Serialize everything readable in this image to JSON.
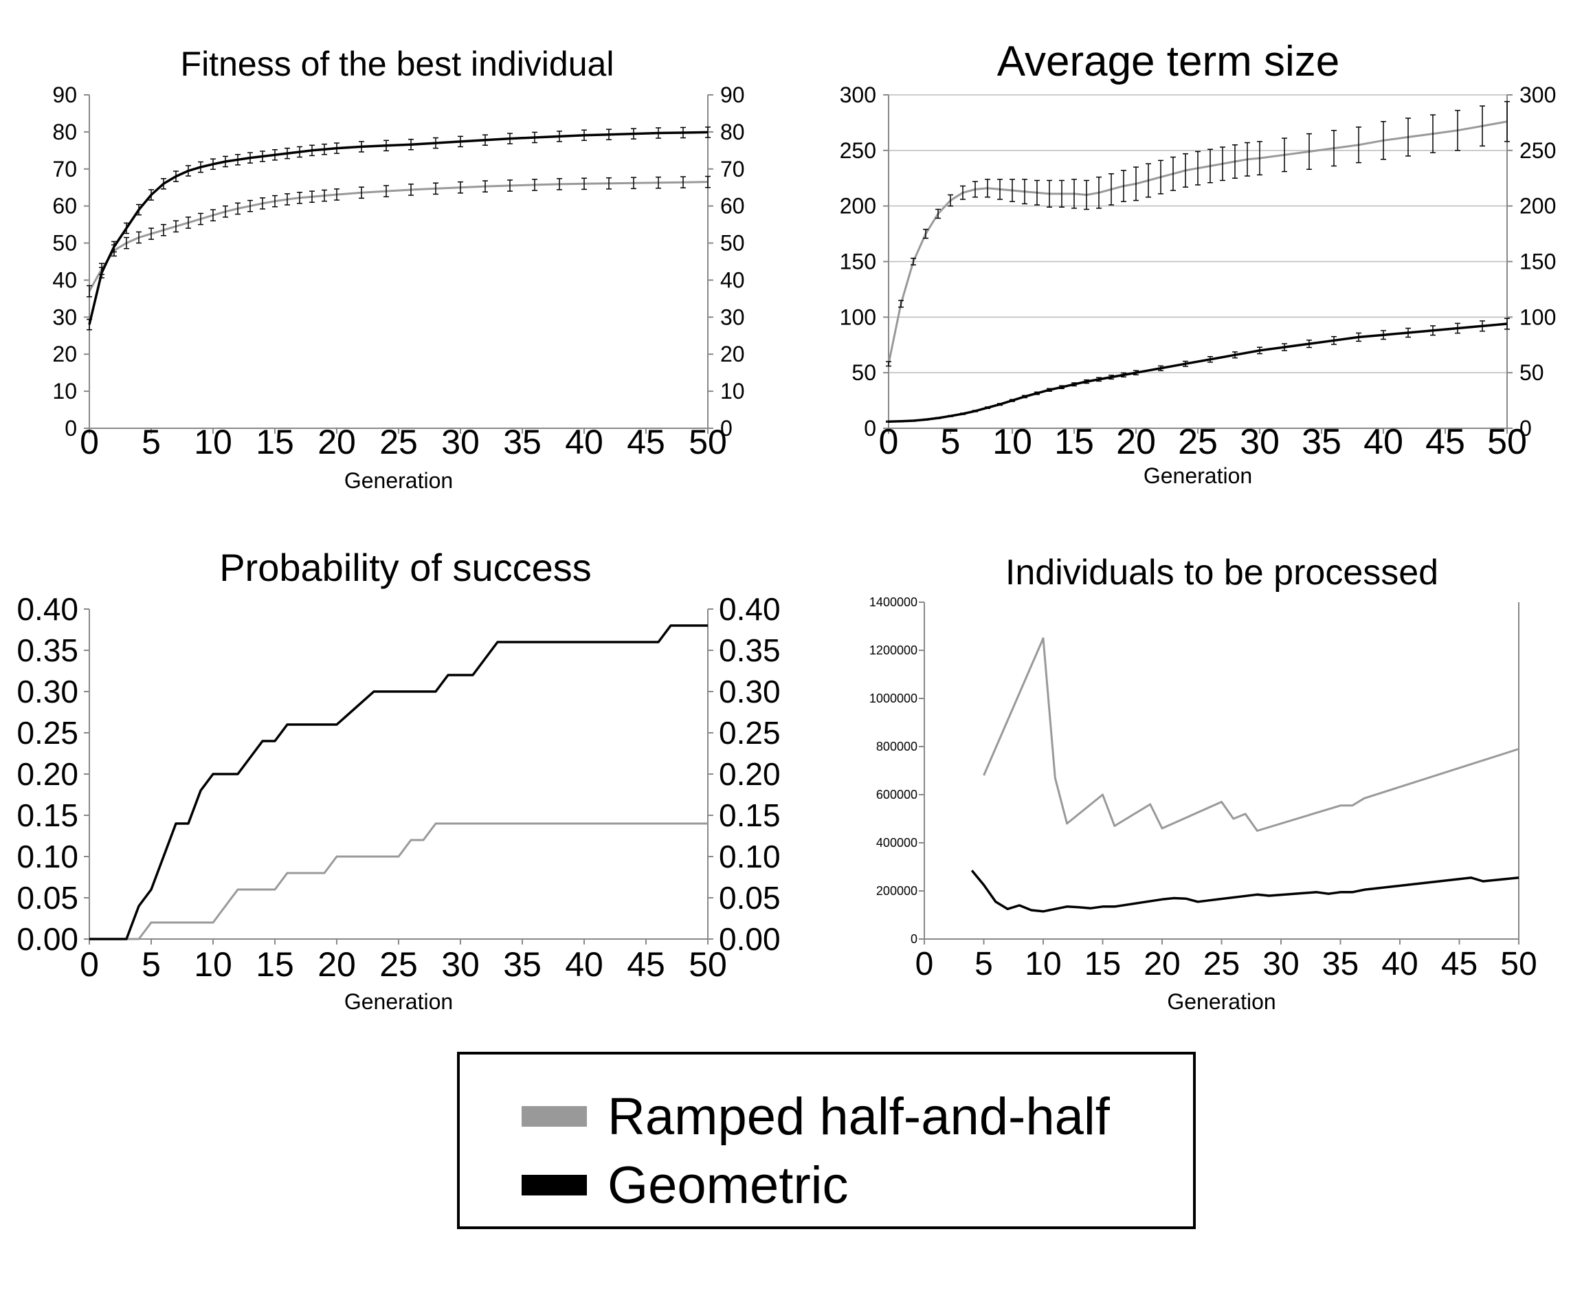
{
  "colors": {
    "ramped": "#999999",
    "geometric": "#000000",
    "grid": "#bbbbbb",
    "axis": "#888888",
    "text": "#000000"
  },
  "legend": {
    "items": [
      {
        "label": "Ramped half-and-half",
        "color": "#999999"
      },
      {
        "label": "Geometric",
        "color": "#000000"
      }
    ]
  },
  "chart_data": [
    {
      "id": "fitness",
      "type": "line",
      "title": "Fitness of the best individual",
      "xlabel": "Generation",
      "ylabel": "",
      "xlim": [
        0,
        50
      ],
      "ylim": [
        0,
        90
      ],
      "xticks": [
        0,
        5,
        10,
        15,
        20,
        25,
        30,
        35,
        40,
        45,
        50
      ],
      "yticks": [
        0,
        10,
        20,
        30,
        40,
        50,
        60,
        70,
        80,
        90
      ],
      "ytick_labels": [
        "0",
        "10",
        "20",
        "30",
        "40",
        "50",
        "60",
        "70",
        "80",
        "90"
      ],
      "right_axis": true,
      "grid": false,
      "error_bars": true,
      "series": [
        {
          "key": "ramped",
          "color": "#999999",
          "x": [
            0,
            1,
            2,
            3,
            4,
            5,
            6,
            7,
            8,
            9,
            10,
            11,
            12,
            13,
            14,
            15,
            16,
            17,
            18,
            19,
            20,
            22,
            24,
            26,
            28,
            30,
            32,
            34,
            36,
            38,
            40,
            42,
            44,
            46,
            48,
            50
          ],
          "y": [
            37,
            43,
            48,
            50,
            51.5,
            52.5,
            53.5,
            54.5,
            55.5,
            56.5,
            57.5,
            58.5,
            59.3,
            60,
            60.7,
            61.3,
            61.8,
            62.2,
            62.5,
            62.8,
            63.1,
            63.6,
            64,
            64.4,
            64.7,
            65,
            65.3,
            65.5,
            65.7,
            65.9,
            66,
            66.1,
            66.2,
            66.3,
            66.4,
            66.5
          ],
          "err": 1.5
        },
        {
          "key": "geometric",
          "color": "#000000",
          "x": [
            0,
            1,
            2,
            3,
            4,
            5,
            6,
            7,
            8,
            9,
            10,
            11,
            12,
            13,
            14,
            15,
            16,
            17,
            18,
            19,
            20,
            22,
            24,
            26,
            28,
            30,
            32,
            34,
            36,
            38,
            40,
            42,
            44,
            46,
            48,
            50
          ],
          "y": [
            28,
            42,
            49,
            54,
            59,
            63,
            66,
            68,
            69.5,
            70.5,
            71.3,
            72,
            72.5,
            73,
            73.4,
            73.8,
            74.2,
            74.6,
            75,
            75.3,
            75.6,
            76,
            76.3,
            76.6,
            77,
            77.4,
            77.8,
            78.2,
            78.5,
            78.8,
            79.1,
            79.3,
            79.5,
            79.7,
            79.8,
            79.9
          ],
          "err": 1.4
        }
      ]
    },
    {
      "id": "termsize",
      "type": "line",
      "title": "Average term size",
      "xlabel": "Generation",
      "ylabel": "",
      "xlim": [
        0,
        50
      ],
      "ylim": [
        0,
        300
      ],
      "xticks": [
        0,
        5,
        10,
        15,
        20,
        25,
        30,
        35,
        40,
        45,
        50
      ],
      "yticks": [
        0,
        50,
        100,
        150,
        200,
        250,
        300
      ],
      "ytick_labels": [
        "0",
        "50",
        "100",
        "150",
        "200",
        "250",
        "300"
      ],
      "right_axis": true,
      "grid": true,
      "error_bars": true,
      "series": [
        {
          "key": "ramped",
          "color": "#999999",
          "x": [
            0,
            1,
            2,
            3,
            4,
            5,
            6,
            7,
            8,
            9,
            10,
            11,
            12,
            13,
            14,
            15,
            16,
            17,
            18,
            19,
            20,
            21,
            22,
            23,
            24,
            25,
            26,
            27,
            28,
            29,
            30,
            32,
            34,
            36,
            38,
            40,
            42,
            44,
            46,
            48,
            50
          ],
          "y": [
            58,
            112,
            150,
            175,
            193,
            205,
            212,
            215,
            216,
            215,
            214,
            213,
            212,
            211,
            211,
            211,
            210,
            212,
            215,
            218,
            220,
            223,
            226,
            229,
            232,
            234,
            236,
            238,
            240,
            242,
            243,
            246,
            249,
            252,
            255,
            259,
            262,
            265,
            268,
            272,
            276
          ],
          "err": [
            2,
            3,
            3,
            4,
            4,
            5,
            6,
            7,
            8,
            9,
            10,
            11,
            11,
            12,
            12,
            13,
            13,
            14,
            14,
            14,
            15,
            15,
            15,
            15,
            15,
            15,
            15,
            15,
            15,
            15,
            15,
            15,
            16,
            16,
            16,
            17,
            17,
            17,
            18,
            18,
            18
          ]
        },
        {
          "key": "geometric",
          "color": "#000000",
          "x": [
            0,
            1,
            2,
            3,
            4,
            5,
            6,
            7,
            8,
            9,
            10,
            11,
            12,
            13,
            14,
            15,
            16,
            17,
            18,
            19,
            20,
            22,
            24,
            26,
            28,
            30,
            32,
            34,
            36,
            38,
            40,
            42,
            44,
            46,
            48,
            50
          ],
          "y": [
            6,
            6.3,
            6.8,
            7.8,
            9.2,
            11,
            13,
            15.5,
            18.5,
            21.5,
            25,
            28.5,
            31.5,
            34.5,
            37,
            39.5,
            42,
            44,
            46,
            48,
            50,
            54,
            58,
            62,
            66,
            70,
            73,
            76,
            79,
            82,
            84,
            86,
            88,
            90,
            92,
            94
          ],
          "err": [
            0.5,
            0.5,
            0.5,
            0.5,
            0.5,
            0.5,
            0.6,
            0.6,
            0.7,
            0.8,
            0.9,
            1,
            1.1,
            1.2,
            1.3,
            1.4,
            1.5,
            1.6,
            1.7,
            1.8,
            1.9,
            2.1,
            2.3,
            2.5,
            2.7,
            2.9,
            3.1,
            3.3,
            3.5,
            3.7,
            3.9,
            4,
            4.2,
            4.4,
            4.6,
            4.8
          ]
        }
      ]
    },
    {
      "id": "success",
      "type": "line",
      "title": "Probability of success",
      "xlabel": "Generation",
      "ylabel": "",
      "xlim": [
        0,
        50
      ],
      "ylim": [
        0,
        0.4
      ],
      "xticks": [
        0,
        5,
        10,
        15,
        20,
        25,
        30,
        35,
        40,
        45,
        50
      ],
      "yticks": [
        0,
        0.05,
        0.1,
        0.15,
        0.2,
        0.25,
        0.3,
        0.35,
        0.4
      ],
      "ytick_labels": [
        "0.00",
        "0.05",
        "0.10",
        "0.15",
        "0.20",
        "0.25",
        "0.30",
        "0.35",
        "0.40"
      ],
      "right_axis": true,
      "grid": false,
      "error_bars": false,
      "series": [
        {
          "key": "ramped",
          "color": "#999999",
          "x": [
            0,
            4,
            5,
            10,
            12,
            15,
            16,
            19,
            20,
            25,
            26,
            27,
            28,
            50
          ],
          "y": [
            0,
            0,
            0.02,
            0.02,
            0.06,
            0.06,
            0.08,
            0.08,
            0.1,
            0.1,
            0.12,
            0.12,
            0.14,
            0.14
          ]
        },
        {
          "key": "geometric",
          "color": "#000000",
          "x": [
            0,
            3,
            4,
            5,
            7,
            8,
            9,
            10,
            12,
            14,
            15,
            16,
            20,
            23,
            28,
            29,
            31,
            33,
            46,
            47,
            50
          ],
          "y": [
            0,
            0,
            0.04,
            0.06,
            0.14,
            0.14,
            0.18,
            0.2,
            0.2,
            0.24,
            0.24,
            0.26,
            0.26,
            0.3,
            0.3,
            0.32,
            0.32,
            0.36,
            0.36,
            0.38,
            0.38
          ]
        }
      ]
    },
    {
      "id": "individuals",
      "type": "line",
      "title": "Individuals to be processed",
      "xlabel": "Generation",
      "ylabel": "",
      "xlim": [
        0,
        50
      ],
      "ylim": [
        0,
        1400000
      ],
      "xticks": [
        0,
        5,
        10,
        15,
        20,
        25,
        30,
        35,
        40,
        45,
        50
      ],
      "yticks": [
        0,
        200000,
        400000,
        600000,
        800000,
        1000000,
        1200000,
        1400000
      ],
      "ytick_labels": [
        "0",
        "200000",
        "400000",
        "600000",
        "800000",
        "1000000",
        "1200000",
        "1400000"
      ],
      "right_axis": false,
      "grid": false,
      "error_bars": false,
      "series": [
        {
          "key": "ramped",
          "color": "#999999",
          "x": [
            5,
            10,
            11,
            12,
            15,
            16,
            19,
            20,
            25,
            26,
            27,
            28,
            35,
            36,
            37,
            50
          ],
          "y": [
            680000,
            1250000,
            670000,
            480000,
            600000,
            470000,
            560000,
            460000,
            570000,
            500000,
            520000,
            450000,
            555000,
            555000,
            585000,
            790000
          ]
        },
        {
          "key": "geometric",
          "color": "#000000",
          "x": [
            4,
            5,
            6,
            7,
            8,
            9,
            10,
            11,
            12,
            13,
            14,
            15,
            16,
            20,
            21,
            22,
            23,
            28,
            29,
            33,
            34,
            35,
            36,
            37,
            46,
            47,
            50
          ],
          "y": [
            285000,
            225000,
            155000,
            125000,
            140000,
            120000,
            115000,
            125000,
            135000,
            132000,
            128000,
            135000,
            135000,
            165000,
            170000,
            168000,
            155000,
            185000,
            180000,
            195000,
            188000,
            195000,
            195000,
            205000,
            255000,
            240000,
            255000
          ]
        }
      ]
    }
  ]
}
